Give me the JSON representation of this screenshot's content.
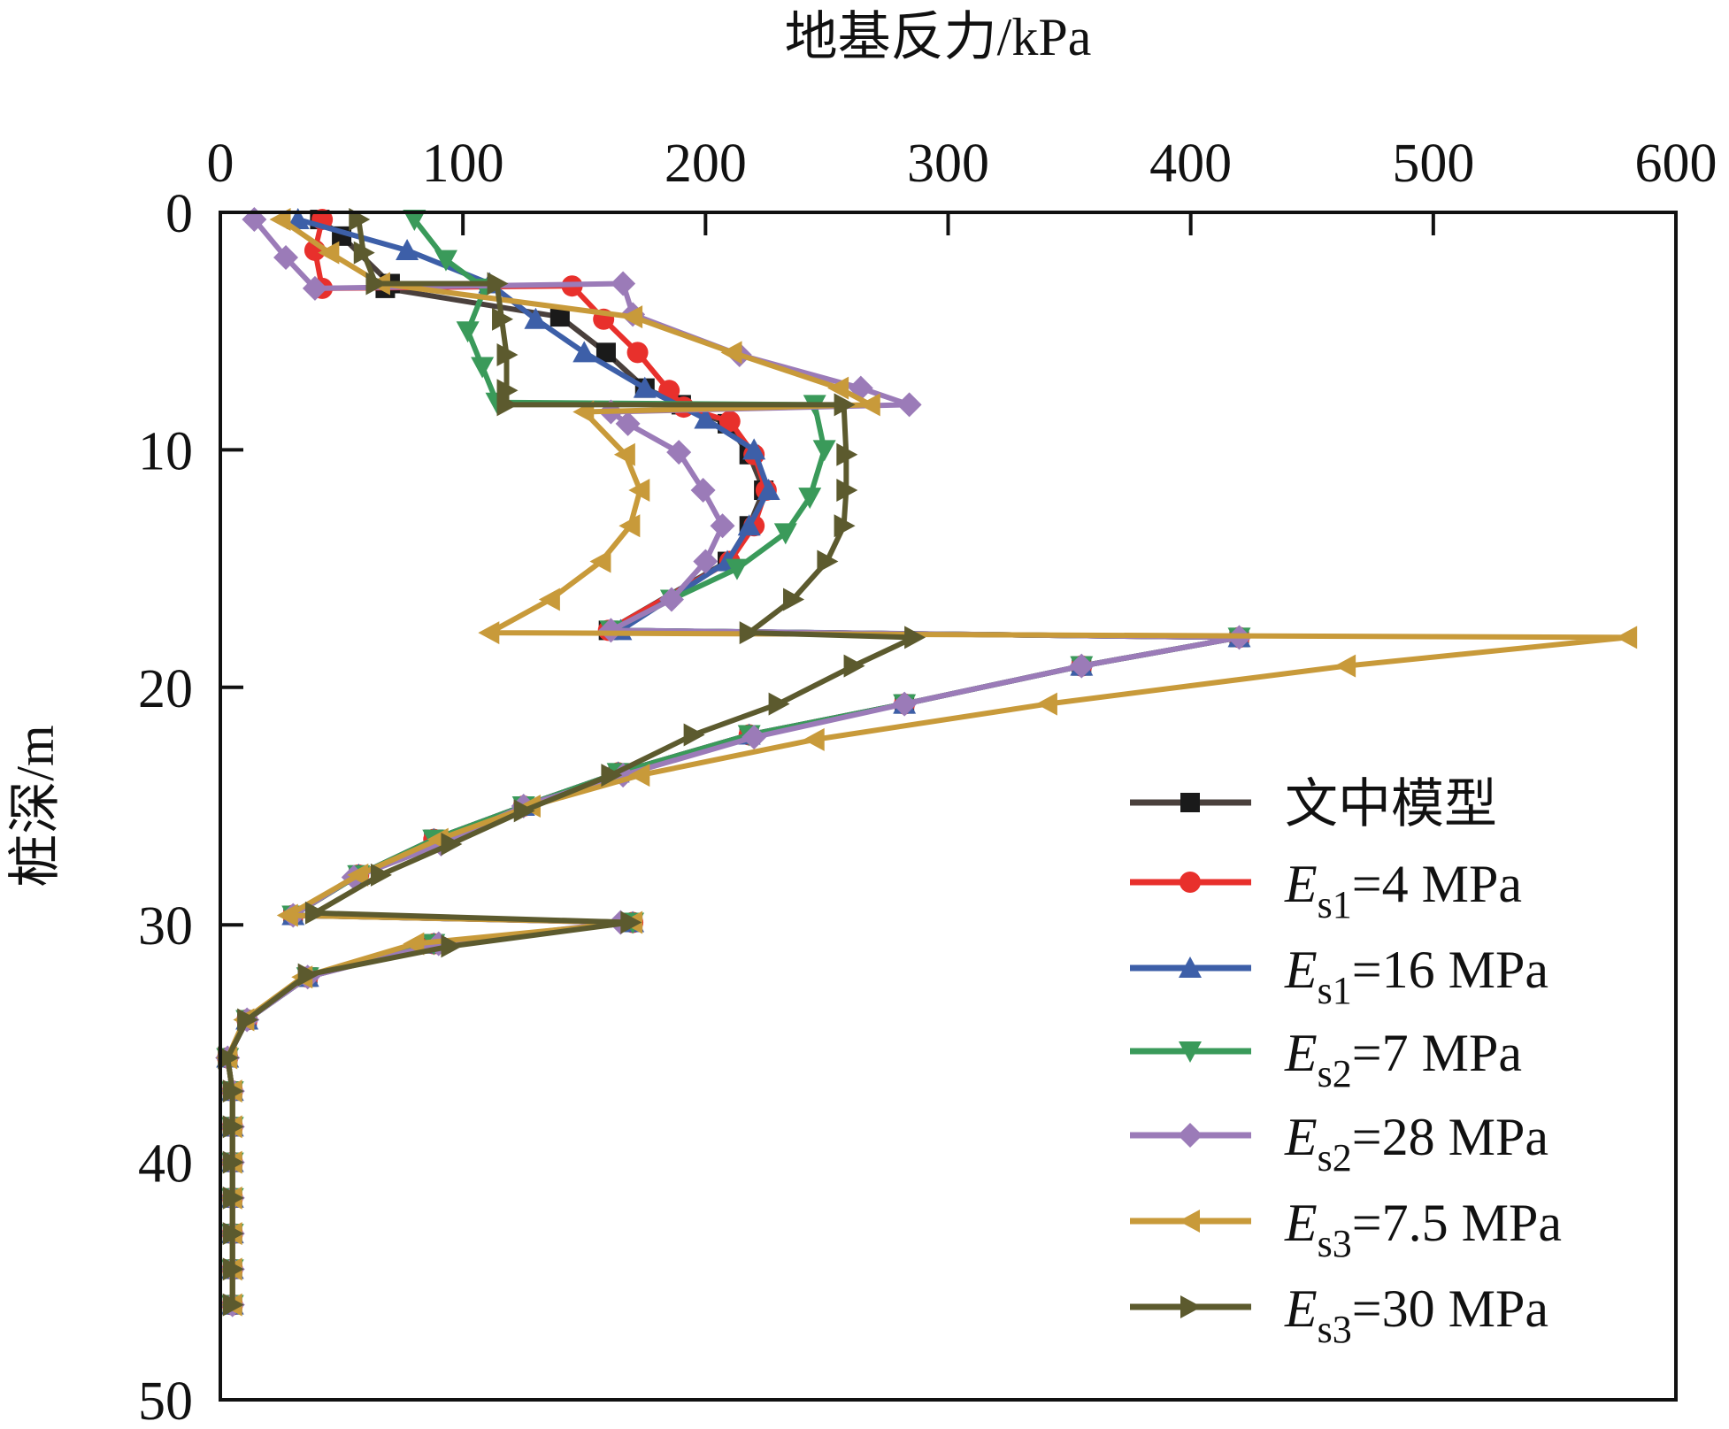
{
  "chart_data": {
    "type": "line",
    "title": "",
    "xlabel": "地基反力/kPa",
    "ylabel": "桩深/m",
    "xlim": [
      0,
      600
    ],
    "ylim": [
      0,
      50
    ],
    "y_inverted": true,
    "x_axis_position": "top",
    "xticks": [
      "0",
      "100",
      "200",
      "300",
      "400",
      "500",
      "600"
    ],
    "yticks": [
      "0",
      "10",
      "20",
      "30",
      "40",
      "50"
    ],
    "legend_position": "bottom-right",
    "series": [
      {
        "name": "文中模型",
        "label_main": "文中模型",
        "label_sub": "",
        "label_rest": "",
        "marker": "square",
        "color": "#1a1a1a",
        "line_color": "#4a403c",
        "x": [
          41,
          50,
          70,
          68,
          140,
          159,
          175,
          190,
          209,
          218,
          224,
          218,
          209,
          160,
          420,
          355,
          282,
          218,
          164,
          125,
          88,
          57,
          30,
          170,
          88,
          36,
          11,
          3,
          5,
          5,
          5,
          5,
          5,
          5,
          5
        ],
        "y": [
          0.3,
          1.0,
          3.0,
          3.2,
          4.4,
          5.9,
          7.4,
          8.1,
          8.9,
          10.2,
          11.7,
          13.2,
          14.7,
          17.6,
          17.9,
          19.1,
          20.7,
          22.0,
          23.6,
          25.0,
          26.4,
          27.9,
          29.6,
          29.9,
          30.8,
          32.2,
          34.0,
          35.6,
          37,
          38.5,
          40,
          41.5,
          43,
          44.5,
          46
        ]
      },
      {
        "name": "Es1=4 MPa",
        "label_main": "E",
        "label_sub": "s1",
        "label_rest": "=4 MPa",
        "marker": "circle",
        "color": "#e8302c",
        "line_color": "#e8302c",
        "x": [
          42,
          39,
          42,
          145,
          158,
          172,
          185,
          191,
          210,
          220,
          225,
          220,
          210,
          160,
          420,
          355,
          282,
          218,
          164,
          125,
          88,
          57,
          30,
          170,
          88,
          36,
          11,
          3,
          5,
          5,
          5,
          5,
          5,
          5,
          5
        ],
        "y": [
          0.3,
          1.6,
          3.2,
          3.1,
          4.5,
          5.9,
          7.5,
          8.2,
          8.8,
          10.2,
          11.7,
          13.2,
          14.7,
          17.6,
          17.9,
          19.1,
          20.7,
          22.0,
          23.6,
          25.0,
          26.4,
          27.9,
          29.6,
          29.9,
          30.8,
          32.2,
          34.0,
          35.6,
          37,
          38.5,
          40,
          41.5,
          43,
          44.5,
          46
        ]
      },
      {
        "name": "Es1=16 MPa",
        "label_main": "E",
        "label_sub": "s1",
        "label_rest": "=16 MPa",
        "marker": "triangle-up",
        "color": "#3d5fa8",
        "line_color": "#3d5fa8",
        "x": [
          32,
          77,
          111,
          130,
          150,
          175,
          200,
          220,
          226,
          218,
          209,
          165,
          420,
          355,
          282,
          218,
          164,
          125,
          88,
          57,
          30,
          170,
          88,
          36,
          11,
          3,
          5,
          5,
          5,
          5,
          5,
          5,
          5
        ],
        "y": [
          0.3,
          1.6,
          3.0,
          4.5,
          5.9,
          7.4,
          8.7,
          10.0,
          11.7,
          13.2,
          14.7,
          17.6,
          17.9,
          19.1,
          20.7,
          22.0,
          23.6,
          25.0,
          26.4,
          27.9,
          29.6,
          29.9,
          30.8,
          32.2,
          34.0,
          35.6,
          37,
          38.5,
          40,
          41.5,
          43,
          44.5,
          46
        ]
      },
      {
        "name": "Es2=7 MPa",
        "label_main": "E",
        "label_sub": "s2",
        "label_rest": "=7 MPa",
        "marker": "triangle-down",
        "color": "#3a9a5a",
        "line_color": "#3a9a5a",
        "x": [
          80,
          93,
          109,
          102,
          108,
          114,
          245,
          249,
          243,
          233,
          213,
          186,
          161,
          420,
          355,
          282,
          218,
          164,
          125,
          88,
          57,
          30,
          170,
          88,
          36,
          11,
          3,
          5,
          5,
          5,
          5,
          5,
          5,
          5
        ],
        "y": [
          0.3,
          2.0,
          3.2,
          5.0,
          6.5,
          8.0,
          8.1,
          10.0,
          12.0,
          13.5,
          15.0,
          16.3,
          17.6,
          17.9,
          19.1,
          20.7,
          22.0,
          23.6,
          25.0,
          26.4,
          27.9,
          29.6,
          29.9,
          30.8,
          32.2,
          34.0,
          35.6,
          37,
          38.5,
          40,
          41.5,
          43,
          44.5,
          46
        ]
      },
      {
        "name": "Es2=28 MPa",
        "label_main": "E",
        "label_sub": "s2",
        "label_rest": "=28 MPa",
        "marker": "diamond",
        "color": "#9b7bb8",
        "line_color": "#9b7bb8",
        "x": [
          14,
          27,
          39,
          166,
          170,
          214,
          264,
          284,
          161,
          168,
          189,
          199,
          207,
          200,
          186,
          161,
          420,
          355,
          282,
          220,
          166,
          125,
          91,
          55,
          30,
          165,
          90,
          36,
          11,
          3,
          5,
          5,
          5,
          5,
          5,
          5,
          5
        ],
        "y": [
          0.3,
          1.9,
          3.2,
          3.0,
          4.3,
          6.0,
          7.4,
          8.1,
          8.4,
          8.9,
          10.1,
          11.7,
          13.2,
          14.7,
          16.3,
          17.6,
          17.9,
          19.1,
          20.7,
          22.1,
          23.7,
          25.0,
          26.6,
          28.0,
          29.6,
          29.9,
          30.8,
          32.2,
          34.0,
          35.6,
          37,
          38.5,
          40,
          41.5,
          43,
          44.5,
          46
        ]
      },
      {
        "name": "Es3=7.5 MPa",
        "label_main": "E",
        "label_sub": "s3",
        "label_rest": "=7.5 MPa",
        "marker": "triangle-left",
        "color": "#c89a3a",
        "line_color": "#c89a3a",
        "x": [
          25,
          45,
          66,
          170,
          211,
          255,
          268,
          150,
          167,
          173,
          169,
          157,
          136,
          111,
          580,
          464,
          341,
          245,
          173,
          128,
          90,
          57,
          28,
          170,
          80,
          34,
          10,
          3,
          5,
          5,
          5,
          5,
          5,
          5,
          5
        ],
        "y": [
          0.3,
          1.7,
          3.0,
          4.4,
          5.9,
          7.4,
          8.1,
          8.4,
          10.2,
          11.7,
          13.2,
          14.7,
          16.3,
          17.7,
          17.9,
          19.1,
          20.7,
          22.2,
          23.7,
          25.0,
          26.4,
          27.9,
          29.6,
          29.9,
          30.8,
          32.2,
          34.0,
          35.6,
          37,
          38.5,
          40,
          41.5,
          43,
          44.5,
          46
        ]
      },
      {
        "name": "Es3=30 MPa",
        "label_main": "E",
        "label_sub": "s3",
        "label_rest": "=30 MPa",
        "marker": "triangle-right",
        "color": "#5c5a2e",
        "line_color": "#5c5a2e",
        "x": [
          57,
          59,
          64,
          114,
          116,
          118,
          118,
          118,
          257,
          258,
          258,
          257,
          250,
          236,
          218,
          286,
          261,
          230,
          195,
          161,
          125,
          95,
          66,
          39,
          169,
          95,
          36,
          11,
          3,
          5,
          5,
          5,
          5,
          5,
          5,
          5
        ],
        "y": [
          0.3,
          1.7,
          3.0,
          3.0,
          4.5,
          6.0,
          7.5,
          8.1,
          8.1,
          10.2,
          11.7,
          13.2,
          14.7,
          16.3,
          17.7,
          17.9,
          19.1,
          20.7,
          22.0,
          23.7,
          25.2,
          26.6,
          27.9,
          29.5,
          29.9,
          30.9,
          32.1,
          34.0,
          35.6,
          37,
          38.5,
          40,
          41.5,
          43,
          44.5,
          46
        ]
      }
    ]
  }
}
